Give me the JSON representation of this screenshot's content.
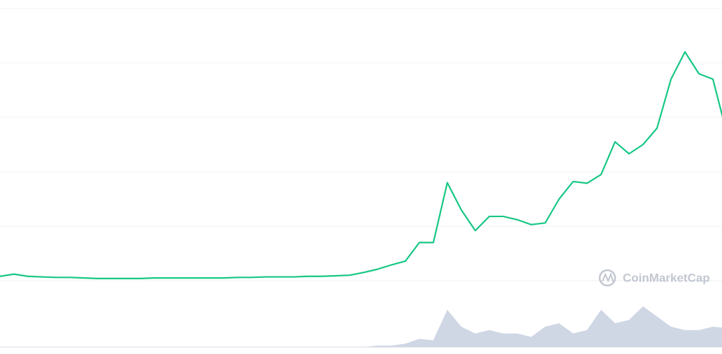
{
  "chart_data": {
    "type": "line",
    "watermark": "CoinMarketCap",
    "categories": [
      null,
      null,
      null,
      null,
      null,
      null,
      null,
      null,
      null,
      null,
      null,
      null,
      null,
      null,
      null,
      null,
      null,
      null,
      null,
      null,
      null,
      null,
      null,
      null,
      null,
      null,
      null,
      null,
      null,
      null,
      null,
      null,
      null,
      null,
      null,
      null,
      null,
      null,
      null,
      null,
      null,
      null,
      null,
      null,
      null,
      null,
      null,
      null,
      null,
      null,
      null,
      null,
      null
    ],
    "series": [
      {
        "name": null,
        "color": "#16c784",
        "values": [
          1.08,
          1.12,
          1.08,
          1.07,
          1.06,
          1.06,
          1.05,
          1.04,
          1.04,
          1.04,
          1.04,
          1.05,
          1.05,
          1.05,
          1.05,
          1.05,
          1.05,
          1.06,
          1.06,
          1.07,
          1.07,
          1.07,
          1.08,
          1.08,
          1.09,
          1.1,
          1.15,
          1.21,
          1.29,
          1.36,
          1.7,
          1.7,
          2.8,
          2.3,
          1.92,
          2.18,
          2.18,
          2.12,
          2.03,
          2.06,
          2.5,
          2.82,
          2.79,
          2.95,
          3.55,
          3.33,
          3.5,
          3.8,
          4.7,
          5.2,
          4.8,
          4.7,
          3.7
        ]
      },
      {
        "name": null,
        "color": "#cfd6e4",
        "axis": "y2",
        "values": [
          0,
          0,
          0,
          0,
          0,
          0,
          0,
          0,
          0,
          0,
          0,
          0,
          0,
          0,
          0,
          0,
          0,
          0,
          0,
          0,
          0,
          0,
          0,
          0,
          0,
          0,
          0,
          2,
          2,
          5,
          12,
          10,
          55,
          30,
          20,
          25,
          20,
          20,
          15,
          30,
          35,
          20,
          25,
          55,
          35,
          40,
          60,
          45,
          30,
          25,
          25,
          30,
          28
        ]
      }
    ],
    "ylim": [
      0,
      6
    ],
    "yticks": [
      1,
      2,
      3,
      4,
      5,
      6
    ],
    "y2lim": [
      0,
      100
    ],
    "grid": true
  }
}
